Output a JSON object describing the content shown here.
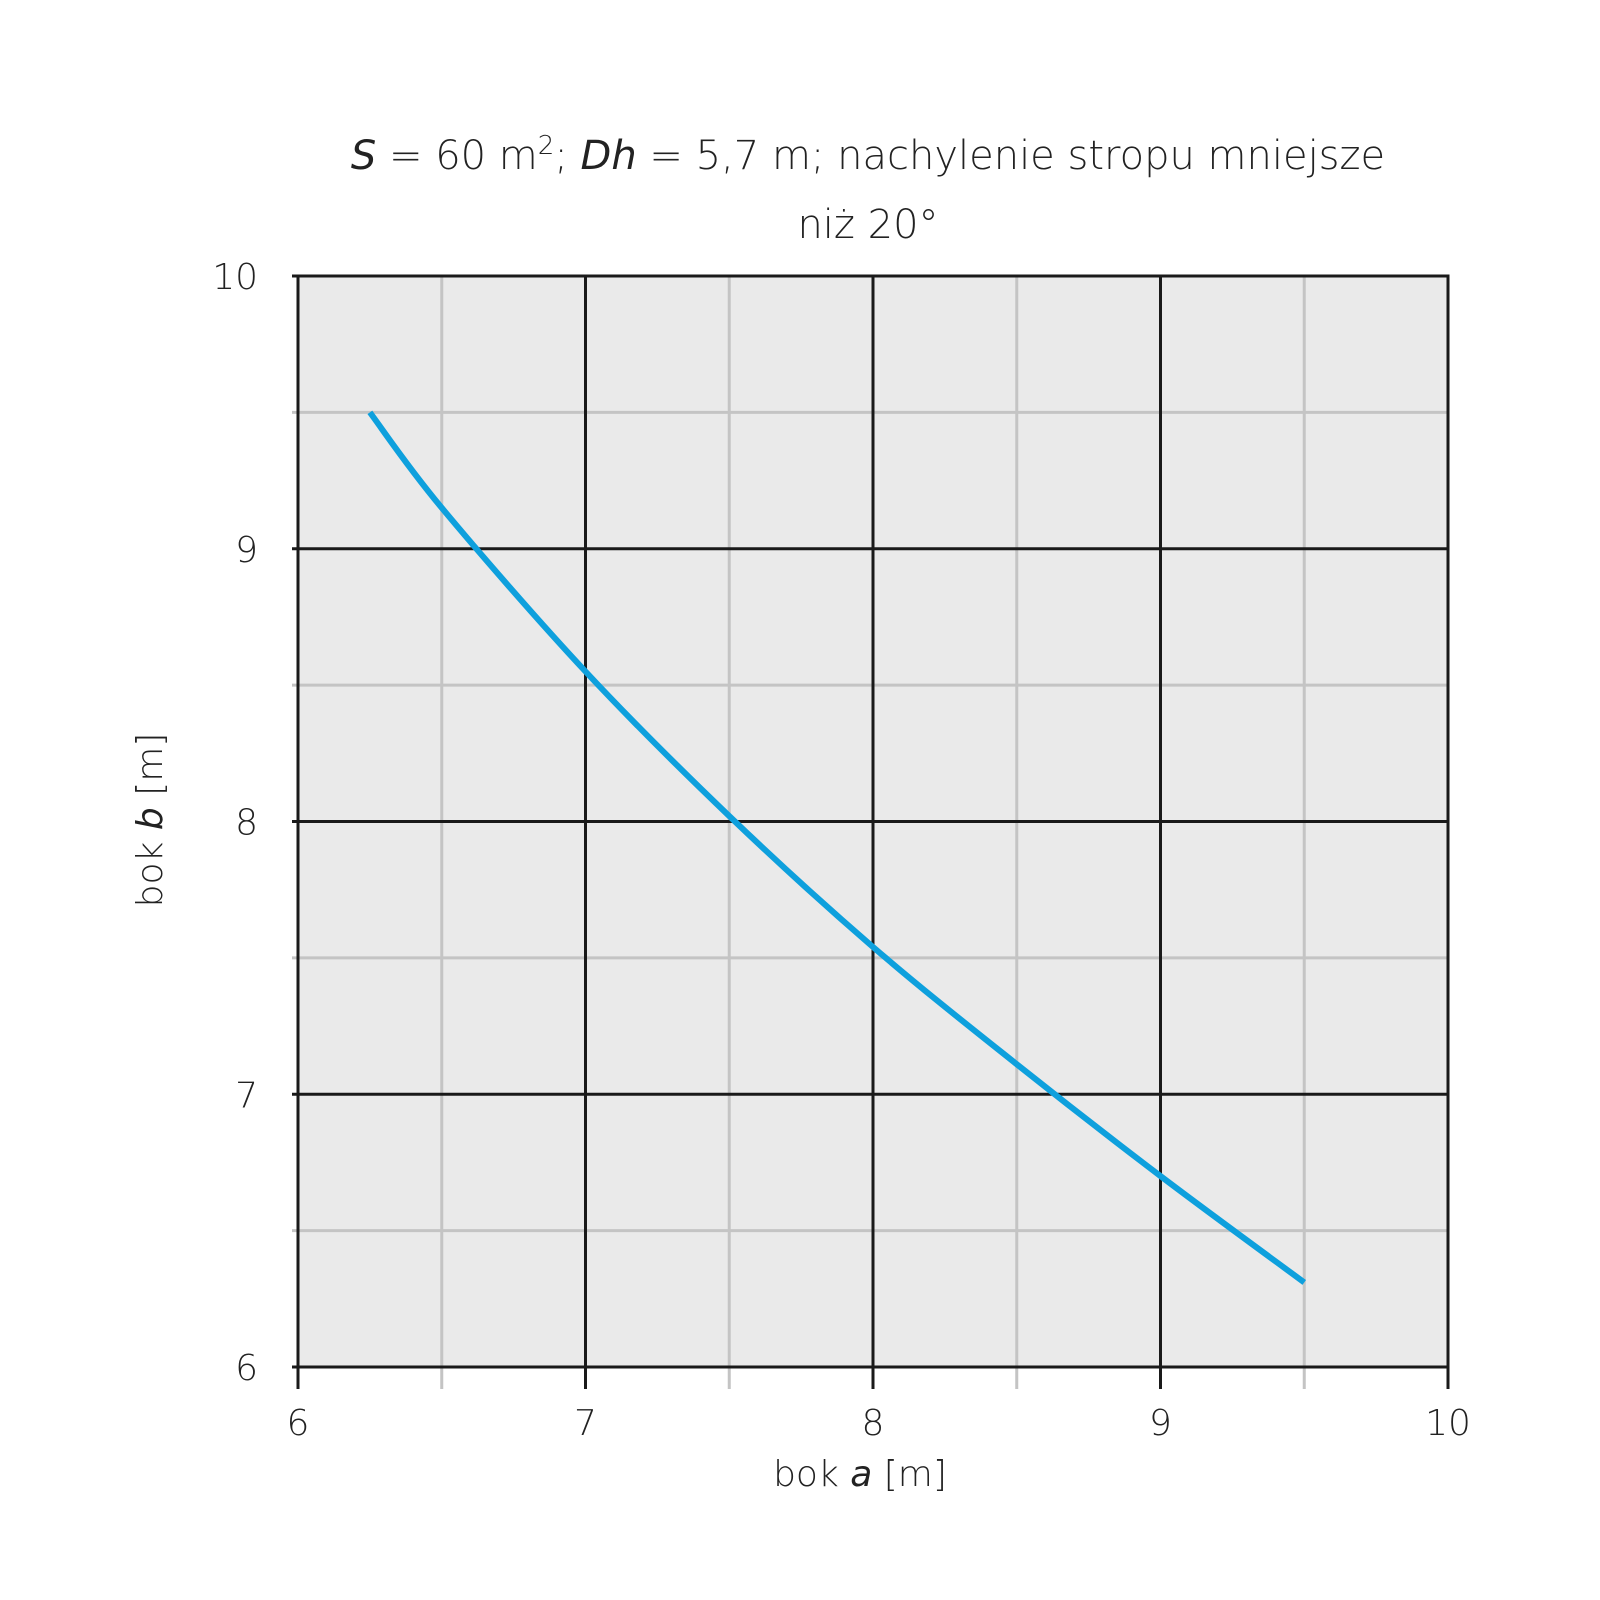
{
  "chart_data": {
    "type": "line",
    "title": {
      "line1": {
        "s_var": "S",
        "s_rest": " = 60 m",
        "sup": "2",
        "sep": "; ",
        "dh_var": "Dh",
        "dh_rest": " = 5,7 m; nachylenie stropu mniejsze"
      },
      "line2": "niż 20°"
    },
    "xlabel": {
      "prefix": "bok ",
      "var": "a",
      "suffix": " [m]"
    },
    "ylabel": {
      "prefix": "bok ",
      "var": "b",
      "suffix": " [m]"
    },
    "xlim": [
      6,
      10
    ],
    "ylim": [
      6,
      10
    ],
    "x_ticks": [
      "6",
      "7",
      "8",
      "9",
      "10"
    ],
    "y_ticks": [
      "6",
      "7",
      "8",
      "9",
      "10"
    ],
    "x_minor": [
      6.5,
      7.5,
      8.5,
      9.5
    ],
    "y_minor": [
      6.5,
      7.5,
      8.5,
      9.5
    ],
    "grid": true,
    "colors": {
      "plot_bg": "#eaeaea",
      "major_grid": "#1a1a1a",
      "minor_grid": "#c4c4c4",
      "line": "#0ea0dd"
    },
    "series": [
      {
        "x": [
          6.25,
          6.5,
          7.0,
          7.5,
          8.0,
          8.5,
          9.0,
          9.5
        ],
        "y": [
          9.5,
          9.15,
          8.55,
          8.02,
          7.54,
          7.11,
          6.7,
          6.31
        ]
      }
    ]
  }
}
